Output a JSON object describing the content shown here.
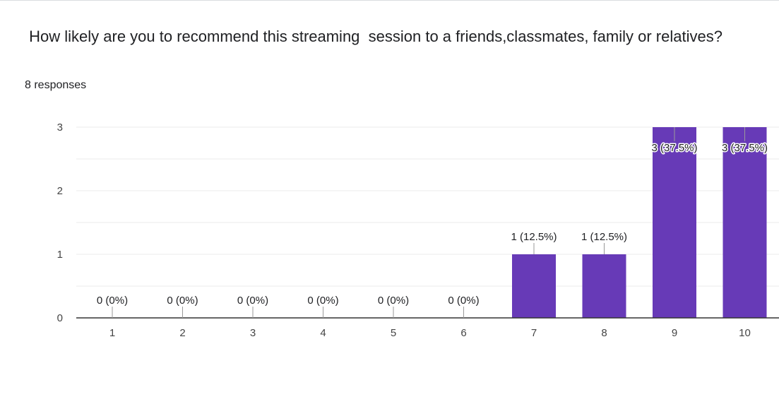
{
  "question": {
    "title": " How likely are you to recommend this streaming  session to a friends,classmates, family or relatives?",
    "responses": "8 responses"
  },
  "colors": {
    "bar": "#673ab7",
    "grid": "#ebebeb",
    "axis": "#333333",
    "tick_label": "#444444",
    "data_label": "#202124"
  },
  "chart_data": {
    "type": "bar",
    "categories": [
      "1",
      "2",
      "3",
      "4",
      "5",
      "6",
      "7",
      "8",
      "9",
      "10"
    ],
    "values": [
      0,
      0,
      0,
      0,
      0,
      0,
      1,
      1,
      3,
      3
    ],
    "data_labels": [
      "0 (0%)",
      "0 (0%)",
      "0 (0%)",
      "0 (0%)",
      "0 (0%)",
      "0 (0%)",
      "1 (12.5%)",
      "1 (12.5%)",
      "3 (37.5%)",
      "3 (37.5%)"
    ],
    "y_ticks": [
      "0",
      "1",
      "2",
      "3"
    ],
    "ylim": [
      0,
      3
    ],
    "grid": true,
    "title": "",
    "xlabel": "",
    "ylabel": ""
  }
}
